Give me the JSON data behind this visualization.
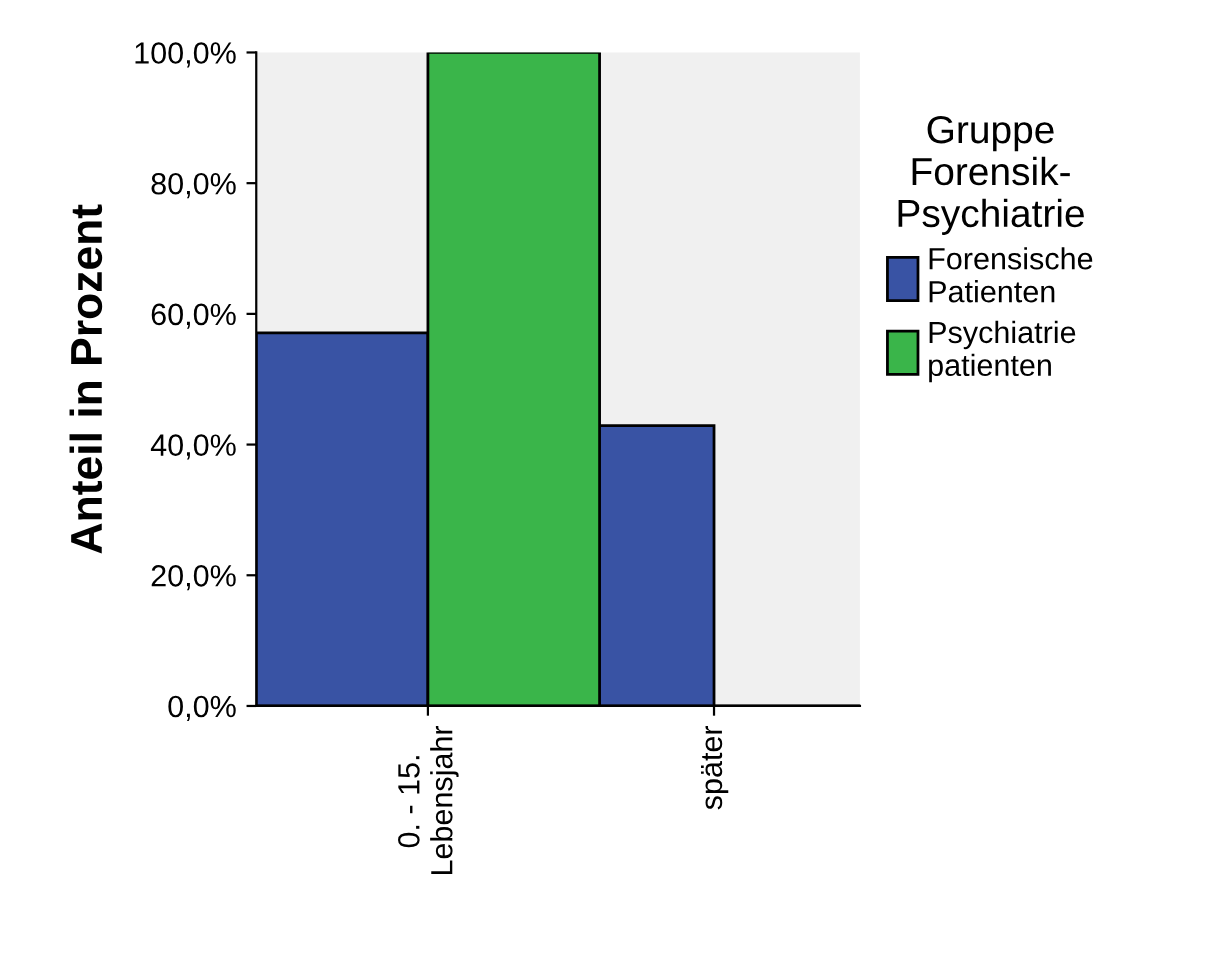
{
  "chart_data": {
    "type": "bar",
    "ylabel": "Anteil in Prozent",
    "legend_title": "Gruppe\nForensik-\nPsychiatrie",
    "categories": [
      "0. - 15.\nLebensjahr",
      "später"
    ],
    "series": [
      {
        "name": "Forensische\nPatienten",
        "color": "#3953a4",
        "values": [
          57.1,
          42.9
        ]
      },
      {
        "name": "Psychiatrie\npatienten",
        "color": "#3ab54a",
        "values": [
          100,
          0
        ]
      }
    ],
    "ylim": [
      0,
      100
    ],
    "yticks": [
      {
        "value": 0,
        "label": "0,0%"
      },
      {
        "value": 20,
        "label": "20,0%"
      },
      {
        "value": 40,
        "label": "40,0%"
      },
      {
        "value": 60,
        "label": "60,0%"
      },
      {
        "value": 80,
        "label": "80,0%"
      },
      {
        "value": 100,
        "label": "100,0%"
      }
    ],
    "grid": false,
    "legend": "right"
  }
}
